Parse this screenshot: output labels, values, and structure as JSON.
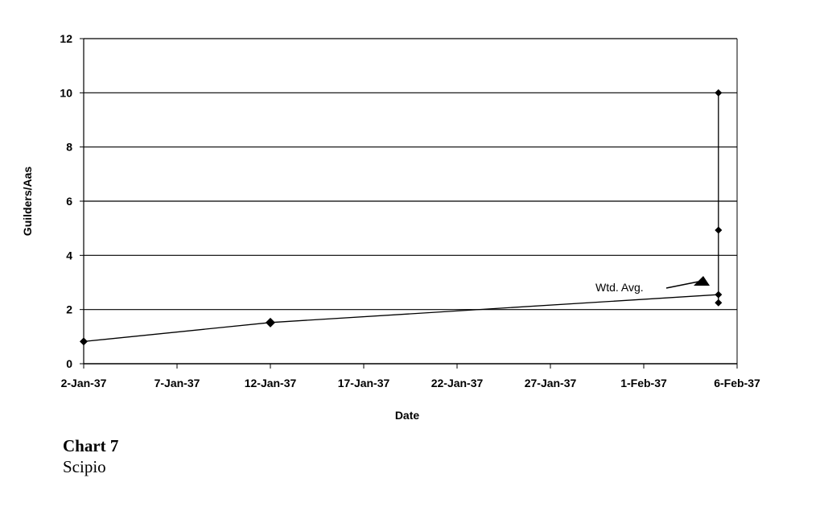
{
  "chart_data": {
    "type": "line",
    "xlabel": "Date",
    "ylabel": "Guilders/Aas",
    "ylim": [
      0,
      12
    ],
    "yticks": [
      0,
      2,
      4,
      6,
      8,
      10,
      12
    ],
    "xlim": [
      "1937-01-02",
      "1937-02-06"
    ],
    "xtick_labels": [
      "2-Jan-37",
      "7-Jan-37",
      "12-Jan-37",
      "17-Jan-37",
      "22-Jan-37",
      "27-Jan-37",
      "1-Feb-37",
      "6-Feb-37"
    ],
    "xticks": [
      "1937-01-02",
      "1937-01-07",
      "1937-01-12",
      "1937-01-17",
      "1937-01-22",
      "1937-01-27",
      "1937-02-01",
      "1937-02-06"
    ],
    "grid": "horizontal",
    "weighted_average_line": {
      "x": [
        "1937-01-02",
        "1937-01-12",
        "1937-02-05"
      ],
      "y": [
        0.82,
        1.52,
        2.55
      ]
    },
    "range_points": {
      "x": "1937-02-05",
      "y": [
        10.0,
        4.93,
        2.55,
        2.25
      ]
    },
    "annotation": {
      "text": "Wtd. Avg.",
      "points_to": {
        "x": "1937-02-05",
        "y": 2.55
      }
    }
  },
  "caption": {
    "title": "Chart 7",
    "subtitle": "Scipio"
  }
}
